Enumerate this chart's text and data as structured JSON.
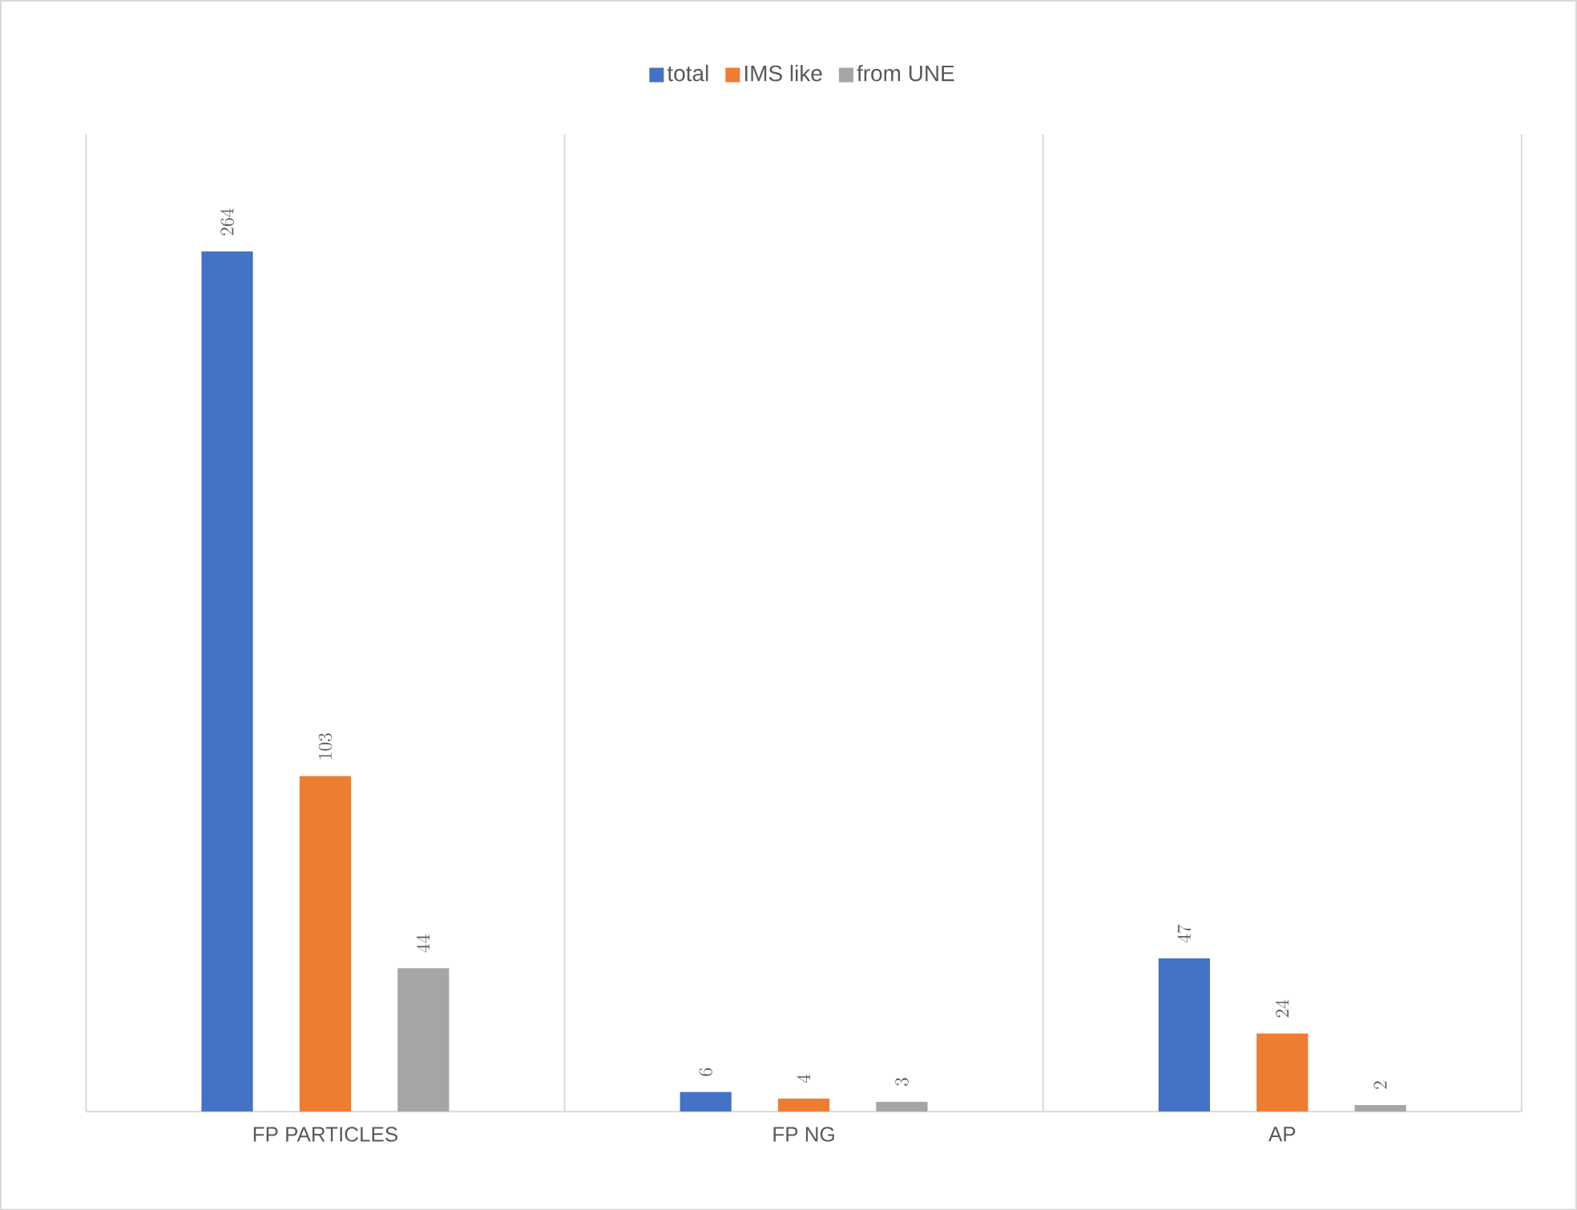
{
  "chart_data": {
    "type": "bar",
    "categories": [
      "FP PARTICLES",
      "FP NG",
      "AP"
    ],
    "series": [
      {
        "name": "total",
        "color": "#4472c4",
        "values": [
          264,
          6,
          47
        ]
      },
      {
        "name": "IMS like",
        "color": "#ed7d31",
        "values": [
          103,
          4,
          24
        ]
      },
      {
        "name": "from UNE",
        "color": "#a5a5a5",
        "values": [
          44,
          3,
          2
        ]
      }
    ],
    "ylim": [
      0,
      300
    ],
    "tick_labels": "x",
    "data_labels": true,
    "grid": "x",
    "legend": "top"
  }
}
